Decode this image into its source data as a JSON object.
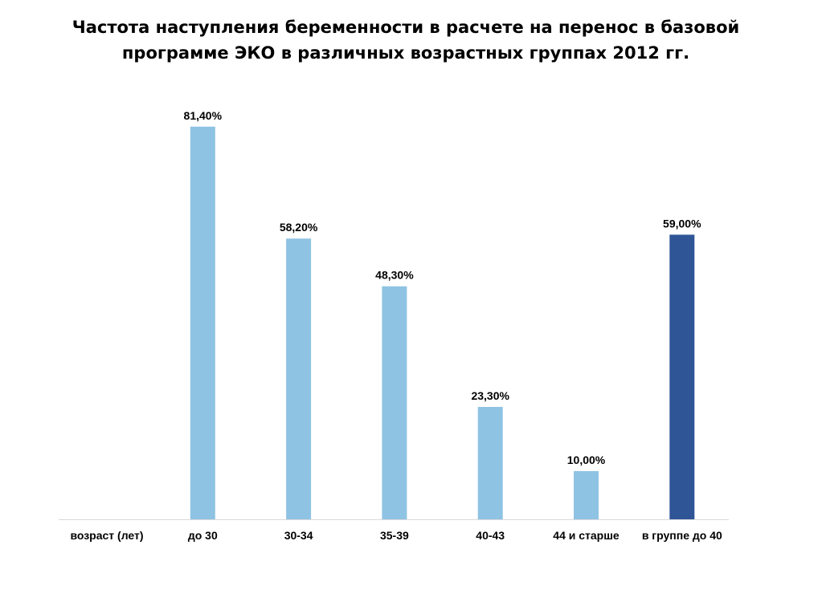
{
  "chart_data": {
    "type": "bar",
    "title_lines": [
      "Частота наступления беременности в расчете на перенос в базовой",
      "программе ЭКО в различных возрастных группах 2012 гг."
    ],
    "xlabel": "возраст (лет)",
    "categories": [
      "до 30",
      "30-34",
      "35-39",
      "40-43",
      "44 и старше",
      "в группе до 40"
    ],
    "values": [
      81.4,
      58.2,
      48.3,
      23.3,
      10.0,
      59.0
    ],
    "data_labels": [
      "81,40%",
      "58,20%",
      "48,30%",
      "23,30%",
      "10,00%",
      "59,00%"
    ],
    "colors": [
      "#8FC3E3",
      "#8FC3E3",
      "#8FC3E3",
      "#8FC3E3",
      "#8FC3E3",
      "#2F5597"
    ],
    "axis_color": "#D9D9D9",
    "ylim": [
      0,
      100
    ],
    "y_axis_visible": false,
    "grid": false,
    "legend": "none"
  }
}
